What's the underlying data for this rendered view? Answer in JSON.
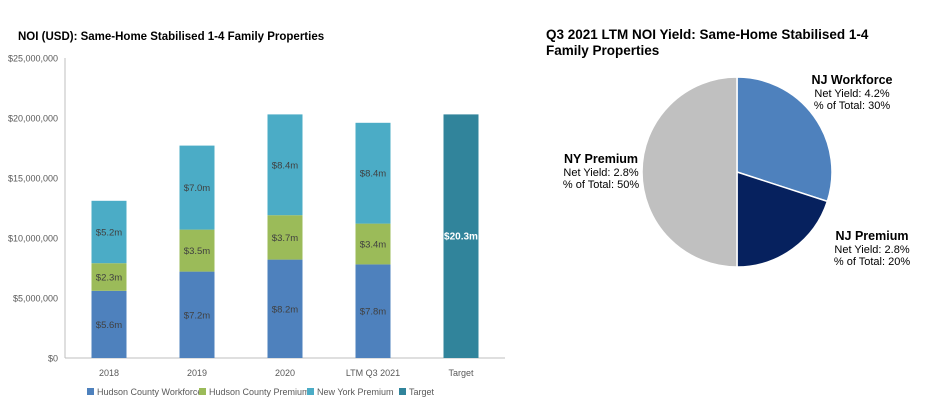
{
  "bar_chart": {
    "title": "NOI (USD): Same-Home Stabilised 1-4 Family Properties",
    "colors": {
      "Hudson County Workforce": "#4e81bd",
      "Hudson County Premium": "#9bbb59",
      "New York Premium": "#4bacc6",
      "Target": "#31849b"
    }
  },
  "pie_chart": {
    "title": "Q3 2021 LTM NOI Yield: Same-Home Stabilised 1-4 Family Properties",
    "slices": [
      {
        "name": "NJ Workforce",
        "value": 30,
        "color": "#4e81bd",
        "yield_text": "Net Yield: 4.2%",
        "share_text": "% of Total: 30%"
      },
      {
        "name": "NJ Premium",
        "value": 20,
        "color": "#06215e",
        "yield_text": "Net Yield: 2.8%",
        "share_text": "% of Total: 20%"
      },
      {
        "name": "NY Premium",
        "value": 50,
        "color": "#c0c0c0",
        "yield_text": "Net Yield: 2.8%",
        "share_text": "% of Total: 50%"
      }
    ]
  },
  "chart_data": [
    {
      "type": "bar",
      "stacked": true,
      "title": "NOI (USD): Same-Home Stabilised 1-4 Family Properties",
      "categories": [
        "2018",
        "2019",
        "2020",
        "LTM Q3 2021",
        "Target"
      ],
      "series": [
        {
          "name": "Hudson County Workforce",
          "values": [
            5600000,
            7200000,
            8200000,
            7800000,
            0
          ],
          "labels": [
            "$5.6m",
            "$7.2m",
            "$8.2m",
            "$7.8m",
            ""
          ]
        },
        {
          "name": "Hudson County Premium",
          "values": [
            2300000,
            3500000,
            3700000,
            3400000,
            0
          ],
          "labels": [
            "$2.3m",
            "$3.5m",
            "$3.7m",
            "$3.4m",
            ""
          ]
        },
        {
          "name": "New York Premium",
          "values": [
            5200000,
            7000000,
            8400000,
            8400000,
            0
          ],
          "labels": [
            "$5.2m",
            "$7.0m",
            "$8.4m",
            "$8.4m",
            ""
          ]
        },
        {
          "name": "Target",
          "values": [
            0,
            0,
            0,
            0,
            20300000
          ],
          "labels": [
            "",
            "",
            "",
            "",
            "$20.3m"
          ]
        }
      ],
      "y_ticks": [
        "$0",
        "$5,000,000",
        "$10,000,000",
        "$15,000,000",
        "$20,000,000",
        "$25,000,000"
      ],
      "ylim": [
        0,
        25000000
      ],
      "grid": false,
      "legend": "bottom"
    },
    {
      "type": "pie",
      "title": "Q3 2021 LTM NOI Yield: Same-Home Stabilised 1-4 Family Properties",
      "labels": [
        "NJ Workforce",
        "NJ Premium",
        "NY Premium"
      ],
      "values": [
        30,
        20,
        50
      ],
      "legend": "none"
    }
  ]
}
